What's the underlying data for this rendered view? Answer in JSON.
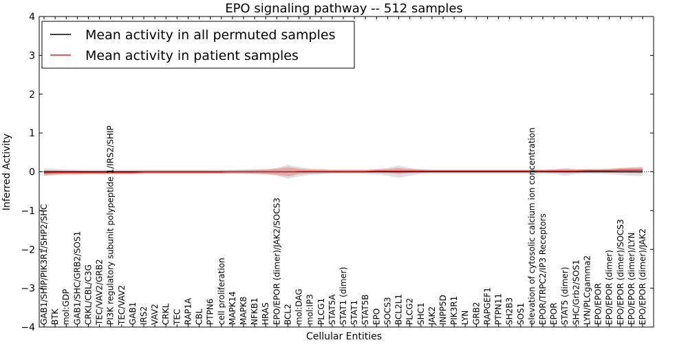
{
  "chart_data": {
    "type": "line",
    "title": "EPO signaling pathway -- 512 samples",
    "xlabel": "Cellular Entities",
    "ylabel": "Inferred Activity",
    "ylim": [
      -4,
      4
    ],
    "yticks": [
      -4,
      -3,
      -2,
      -1,
      0,
      1,
      2,
      3,
      4
    ],
    "legend_position": "top-left",
    "categories": [
      "GAB1/SHIP/PIK3R1/SHP2/SHC",
      "BTK",
      "mol:GDP",
      "GAB1/SHC/GRB2/SOS1",
      "CRKL/CBL/C3G",
      "TEC/VAV2/GRB2",
      "PI3K regulatory subunit polypeptide 1/IRS2/SHIP",
      "TEC/VAV2",
      "GAB1",
      "IRS2",
      "VAV2",
      "CRKL",
      "TEC",
      "RAP1A",
      "CBL",
      "PTPN6",
      "cell proliferation",
      "MAPK14",
      "MAPK8",
      "NFKB1",
      "HRAS",
      "EPO/EPOR (dimer)/JAK2/SOCS3",
      "BCL2",
      "mol:DAG",
      "mol:IP3",
      "PLCG1",
      "STAT5A",
      "STAT1 (dimer)",
      "STAT1",
      "STAT5B",
      "EPO",
      "SOCS3",
      "BCL2L1",
      "PLCG2",
      "SHC1",
      "JAK2",
      "INPP5D",
      "PIK3R1",
      "LYN",
      "GRB2",
      "RAPGEF1",
      "PTPN11",
      "SH2B3",
      "SOS1",
      "elevation of cytosolic calcium ion concentration",
      "EPOR/TRPC2/IP3 Receptors",
      "EPOR",
      "STAT5 (dimer)",
      "SHC/Grb2/SOS1",
      "LYN/PLCgamma2",
      "EPO/EPOR",
      "EPO/EPOR (dimer)",
      "EPO/EPOR (dimer)/SOCS3",
      "EPO/EPOR (dimer)/LYN",
      "EPO/EPOR (dimer)/JAK2"
    ],
    "series": [
      {
        "name": "Mean activity in all permuted samples",
        "color": "#000000",
        "values": [
          0,
          0,
          0,
          0,
          0,
          0,
          0,
          0,
          0,
          0,
          0,
          0,
          0,
          0,
          0,
          0,
          0,
          0,
          0,
          0,
          0,
          0,
          0,
          0,
          0,
          0,
          0,
          0,
          0,
          0,
          0,
          0,
          0,
          0,
          0,
          0,
          0,
          0,
          0,
          0,
          0,
          0,
          0,
          0,
          0,
          0,
          0,
          0,
          0,
          0,
          0,
          0,
          0,
          0,
          0
        ]
      },
      {
        "name": "Mean activity in patient samples",
        "color": "#d62728",
        "values": [
          -0.03,
          -0.02,
          -0.02,
          -0.02,
          -0.02,
          -0.02,
          -0.02,
          -0.02,
          -0.02,
          -0.01,
          -0.01,
          -0.01,
          -0.01,
          -0.01,
          -0.01,
          -0.01,
          -0.01,
          0,
          0,
          0,
          0,
          0,
          0,
          0.01,
          0.01,
          0.01,
          0.01,
          0.01,
          0.01,
          0.01,
          0.02,
          0.02,
          0.02,
          0.02,
          0.02,
          0.02,
          0.02,
          0.02,
          0.02,
          0.02,
          0.02,
          0.02,
          0.02,
          0.02,
          0.02,
          0.02,
          0.02,
          0.02,
          0.02,
          0.03,
          0.03,
          0.03,
          0.04,
          0.04,
          0.04
        ]
      }
    ],
    "bands": [
      {
        "name": "permuted spread",
        "color": "#cccccc",
        "halfwidth": [
          0.09,
          0.07,
          0.06,
          0.05,
          0.05,
          0.05,
          0.05,
          0.05,
          0.05,
          0.05,
          0.05,
          0.05,
          0.05,
          0.05,
          0.05,
          0.05,
          0.05,
          0.05,
          0.06,
          0.06,
          0.06,
          0.1,
          0.18,
          0.12,
          0.08,
          0.06,
          0.05,
          0.05,
          0.05,
          0.05,
          0.07,
          0.1,
          0.16,
          0.1,
          0.06,
          0.05,
          0.05,
          0.05,
          0.05,
          0.05,
          0.05,
          0.05,
          0.05,
          0.05,
          0.05,
          0.05,
          0.06,
          0.1,
          0.06,
          0.05,
          0.05,
          0.06,
          0.08,
          0.1,
          0.11
        ]
      },
      {
        "name": "patient spread",
        "color": "#e88080",
        "halfwidth": [
          0.07,
          0.06,
          0.05,
          0.05,
          0.04,
          0.04,
          0.04,
          0.04,
          0.04,
          0.04,
          0.04,
          0.04,
          0.04,
          0.04,
          0.04,
          0.04,
          0.04,
          0.04,
          0.04,
          0.05,
          0.06,
          0.08,
          0.12,
          0.07,
          0.05,
          0.05,
          0.04,
          0.04,
          0.04,
          0.04,
          0.04,
          0.05,
          0.08,
          0.05,
          0.04,
          0.03,
          0.03,
          0.03,
          0.03,
          0.03,
          0.03,
          0.03,
          0.03,
          0.03,
          0.03,
          0.03,
          0.04,
          0.05,
          0.04,
          0.04,
          0.04,
          0.05,
          0.06,
          0.07,
          0.08
        ]
      }
    ]
  }
}
